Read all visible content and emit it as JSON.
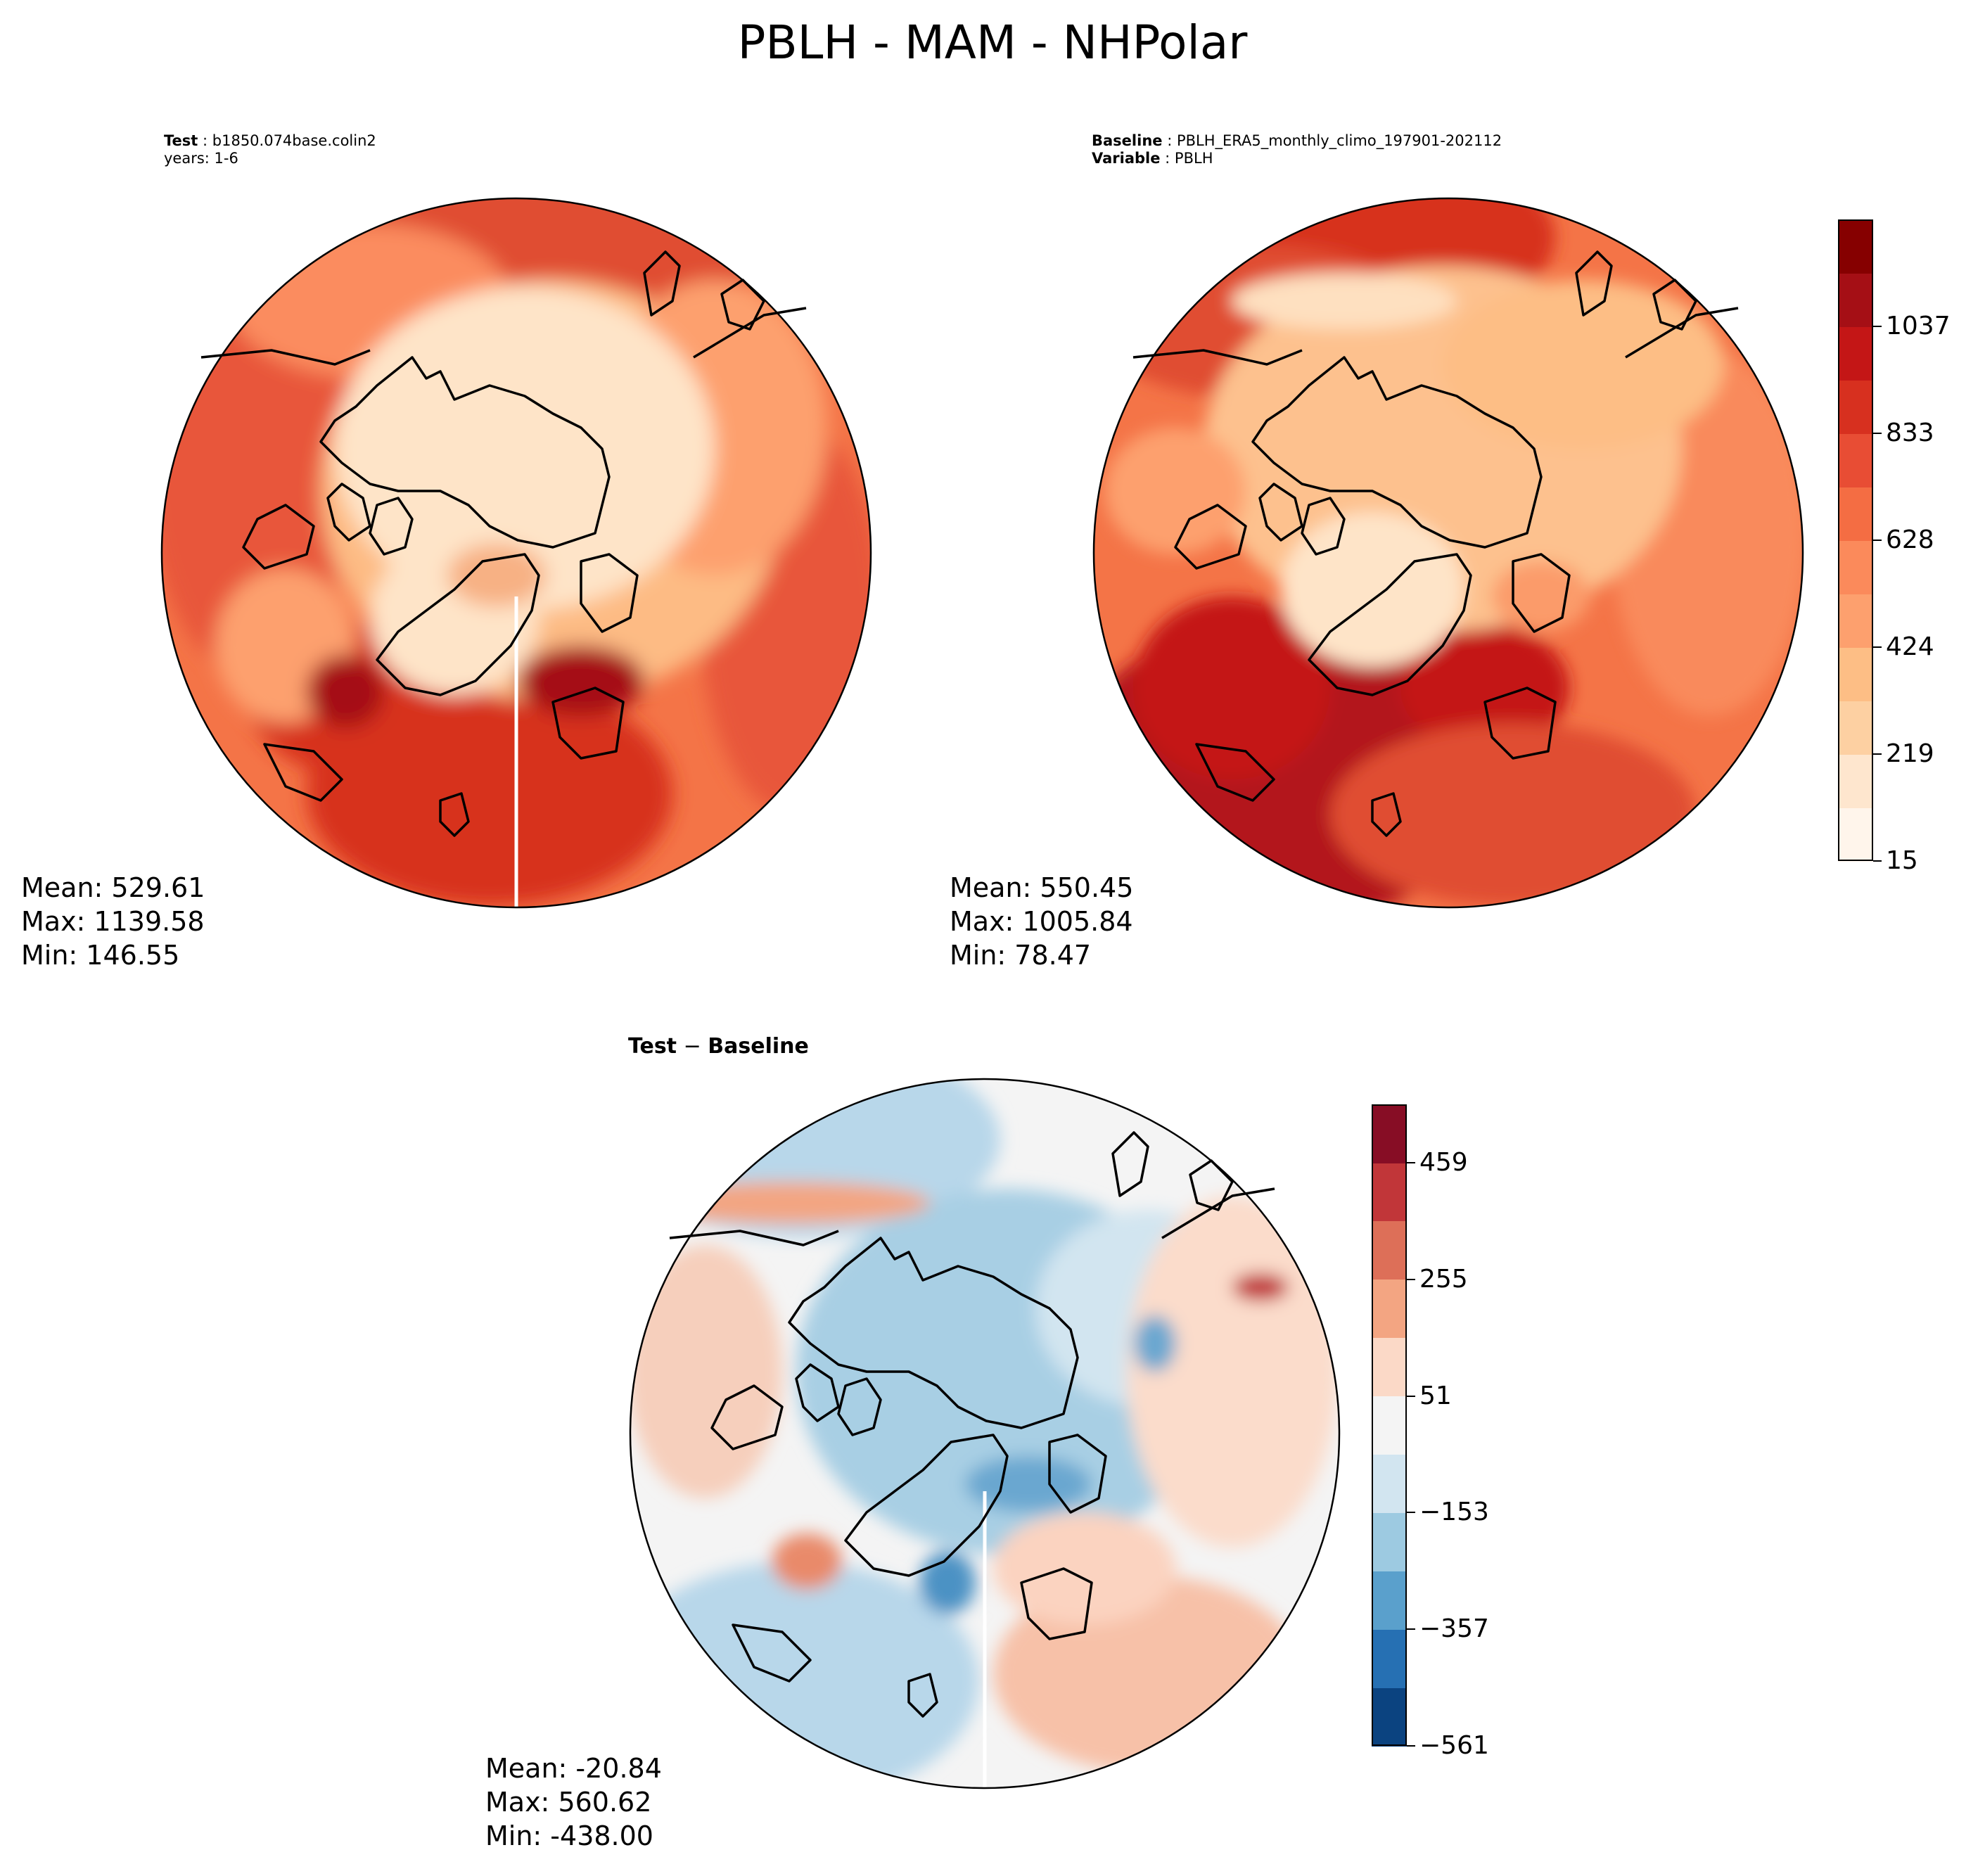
{
  "figure": {
    "title": "PBLH - MAM - NHPolar"
  },
  "panels": {
    "test": {
      "header_key": "Test",
      "header_value": "b1850.074base.colin2",
      "header_line2": "years: 1-6",
      "stats": {
        "mean": "Mean: 529.61",
        "max": "Max: 1139.58",
        "min": "Min: 146.55"
      }
    },
    "baseline": {
      "header_key": "Baseline",
      "header_value": "PBLH_ERA5_monthly_climo_197901-202112",
      "header_key2": "Variable",
      "header_value2": "PBLH",
      "stats": {
        "mean": "Mean: 550.45",
        "max": "Max: 1005.84",
        "min": "Min: 78.47"
      }
    },
    "diff": {
      "header_key": "Test",
      "header_op": " − ",
      "header_key2": "Baseline",
      "stats": {
        "mean": "Mean: -20.84",
        "max": "Max: 560.62",
        "min": "Min: -438.00"
      }
    }
  },
  "colorbars": {
    "absolute": {
      "colormap": "Reds",
      "tick_labels": [
        "15",
        "219",
        "424",
        "628",
        "833",
        "1037"
      ],
      "colors": [
        "#fff5eb",
        "#fee6ce",
        "#fdd0a2",
        "#fdbe85",
        "#fda06e",
        "#fb8a5b",
        "#f46d43",
        "#e84d34",
        "#d7301f",
        "#c41616",
        "#a50f15",
        "#860000"
      ]
    },
    "difference": {
      "colormap": "RdBu_r",
      "tick_labels": [
        "−561",
        "−357",
        "−153",
        "51",
        "255",
        "459"
      ],
      "colors": [
        "#0b4380",
        "#2670b3",
        "#5aa0cc",
        "#9dcae1",
        "#d2e5f0",
        "#f4f4f4",
        "#fbd9c7",
        "#f3a582",
        "#dd6f58",
        "#c13639",
        "#870d25"
      ]
    }
  }
}
